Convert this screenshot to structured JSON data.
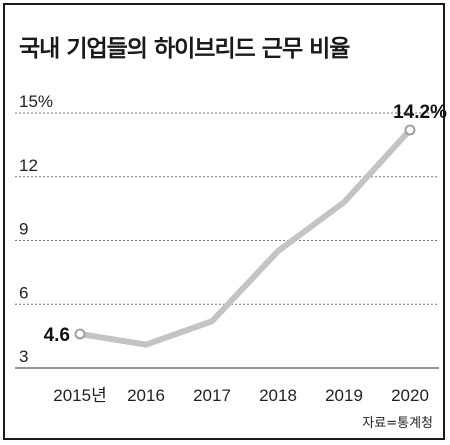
{
  "chart_data": {
    "type": "line",
    "title": "국내 기업들의 하이브리드 근무 비율",
    "categories": [
      "2015년",
      "2016",
      "2017",
      "2018",
      "2019",
      "2020"
    ],
    "values": [
      4.6,
      4.1,
      5.2,
      8.5,
      10.8,
      14.2
    ],
    "data_labels": [
      {
        "index": 0,
        "text": "4.6"
      },
      {
        "index": 5,
        "text": "14.2%"
      }
    ],
    "y_ticks": [
      "15%",
      "12",
      "9",
      "6",
      "3"
    ],
    "y_tick_values": [
      15,
      12,
      9,
      6,
      3
    ],
    "ylim": [
      3,
      15
    ],
    "grid": true,
    "line_color": "#c4c4c4",
    "source": "자료=통계청"
  }
}
